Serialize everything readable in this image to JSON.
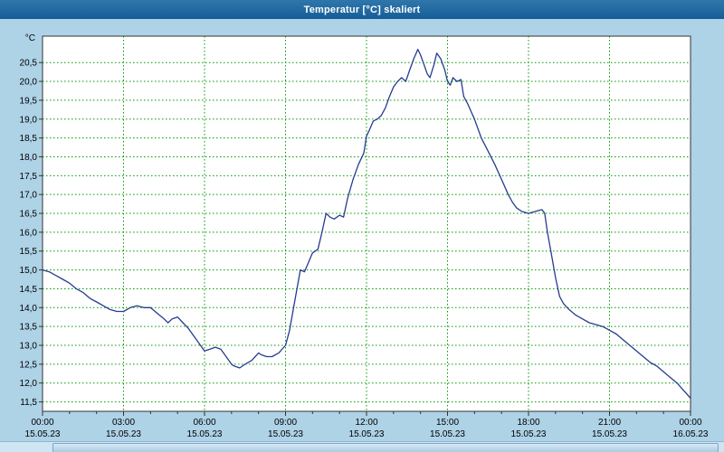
{
  "window": {
    "title": "Temperatur [°C] skaliert"
  },
  "colors": {
    "background": "#aed2e6",
    "titlebar": "#1565a0",
    "plot_background": "#ffffff",
    "plot_border": "#333333",
    "grid": "#009b00",
    "line": "#263c8f",
    "axis_text": "#000000"
  },
  "chart_data": {
    "type": "line",
    "title": "Temperatur [°C] skaliert",
    "ylabel": "°C",
    "unit_label": "°C",
    "grid": true,
    "legend": "none",
    "ylim": [
      11.25,
      21.2
    ],
    "xlim_hours": [
      0,
      24
    ],
    "y_tick_values": [
      20.5,
      20.0,
      19.5,
      19.0,
      18.5,
      18.0,
      17.5,
      17.0,
      16.5,
      16.0,
      15.5,
      15.0,
      14.5,
      14.0,
      13.5,
      13.0,
      12.5,
      12.0,
      11.5
    ],
    "y_tick_labels": [
      "20,5",
      "20,0",
      "19,5",
      "19,0",
      "18,5",
      "18,0",
      "17,5",
      "17,0",
      "16,5",
      "16,0",
      "15,5",
      "15,0",
      "14,5",
      "14,0",
      "13,5",
      "13,0",
      "12,5",
      "12,0",
      "11,5"
    ],
    "x_tick_hours": [
      0,
      3,
      6,
      9,
      12,
      15,
      18,
      21,
      24
    ],
    "x_tick_times": [
      "00:00",
      "03:00",
      "06:00",
      "09:00",
      "12:00",
      "15:00",
      "18:00",
      "21:00",
      "00:00"
    ],
    "x_tick_dates": [
      "15.05.23",
      "15.05.23",
      "15.05.23",
      "15.05.23",
      "15.05.23",
      "15.05.23",
      "15.05.23",
      "15.05.23",
      "16.05.23"
    ],
    "minor_x_tick_step_hours": 1,
    "series": [
      {
        "name": "Temperatur",
        "x_hours": [
          0,
          0.25,
          0.5,
          0.75,
          1,
          1.25,
          1.5,
          1.75,
          2,
          2.25,
          2.5,
          2.75,
          3,
          3.25,
          3.5,
          3.75,
          4,
          4.25,
          4.5,
          4.65,
          4.8,
          5,
          5.2,
          5.4,
          5.6,
          5.8,
          6,
          6.2,
          6.4,
          6.6,
          6.8,
          7,
          7.1,
          7.3,
          7.5,
          7.75,
          8,
          8.1,
          8.3,
          8.5,
          8.75,
          9,
          9.15,
          9.3,
          9.45,
          9.55,
          9.7,
          9.85,
          10,
          10.2,
          10.35,
          10.5,
          10.65,
          10.8,
          11,
          11.15,
          11.3,
          11.5,
          11.7,
          11.9,
          12,
          12.1,
          12.25,
          12.4,
          12.55,
          12.7,
          12.85,
          13,
          13.15,
          13.3,
          13.45,
          13.6,
          13.75,
          13.9,
          14,
          14.1,
          14.25,
          14.35,
          14.5,
          14.6,
          14.75,
          14.9,
          15,
          15.1,
          15.2,
          15.35,
          15.5,
          15.6,
          15.75,
          16,
          16.25,
          16.5,
          16.75,
          17,
          17.25,
          17.4,
          17.55,
          17.75,
          18,
          18.25,
          18.5,
          18.6,
          18.7,
          18.85,
          19,
          19.15,
          19.3,
          19.5,
          19.75,
          20,
          20.25,
          20.5,
          20.75,
          21,
          21.25,
          21.5,
          21.75,
          22,
          22.25,
          22.5,
          22.75,
          23,
          23.25,
          23.5,
          23.75,
          24
        ],
        "y": [
          15.0,
          14.95,
          14.85,
          14.75,
          14.65,
          14.5,
          14.4,
          14.25,
          14.15,
          14.05,
          13.95,
          13.9,
          13.9,
          14.0,
          14.05,
          14.0,
          14.0,
          13.85,
          13.7,
          13.6,
          13.7,
          13.75,
          13.6,
          13.45,
          13.25,
          13.05,
          12.85,
          12.9,
          12.95,
          12.9,
          12.7,
          12.5,
          12.45,
          12.4,
          12.5,
          12.6,
          12.8,
          12.75,
          12.7,
          12.7,
          12.8,
          13.0,
          13.4,
          14.0,
          14.6,
          15.0,
          14.95,
          15.2,
          15.45,
          15.55,
          16.0,
          16.5,
          16.4,
          16.35,
          16.45,
          16.4,
          16.9,
          17.4,
          17.8,
          18.1,
          18.55,
          18.7,
          18.95,
          19.0,
          19.1,
          19.3,
          19.6,
          19.85,
          20.0,
          20.1,
          20.0,
          20.3,
          20.6,
          20.85,
          20.7,
          20.5,
          20.2,
          20.1,
          20.45,
          20.75,
          20.6,
          20.3,
          20.0,
          19.9,
          20.1,
          20.0,
          20.05,
          19.6,
          19.4,
          19.0,
          18.5,
          18.15,
          17.8,
          17.4,
          17.0,
          16.8,
          16.65,
          16.55,
          16.5,
          16.55,
          16.6,
          16.5,
          16.0,
          15.4,
          14.8,
          14.3,
          14.1,
          13.95,
          13.8,
          13.7,
          13.6,
          13.55,
          13.5,
          13.4,
          13.3,
          13.15,
          13.0,
          12.85,
          12.7,
          12.55,
          12.45,
          12.3,
          12.15,
          12.0,
          11.8,
          11.6
        ]
      }
    ]
  }
}
